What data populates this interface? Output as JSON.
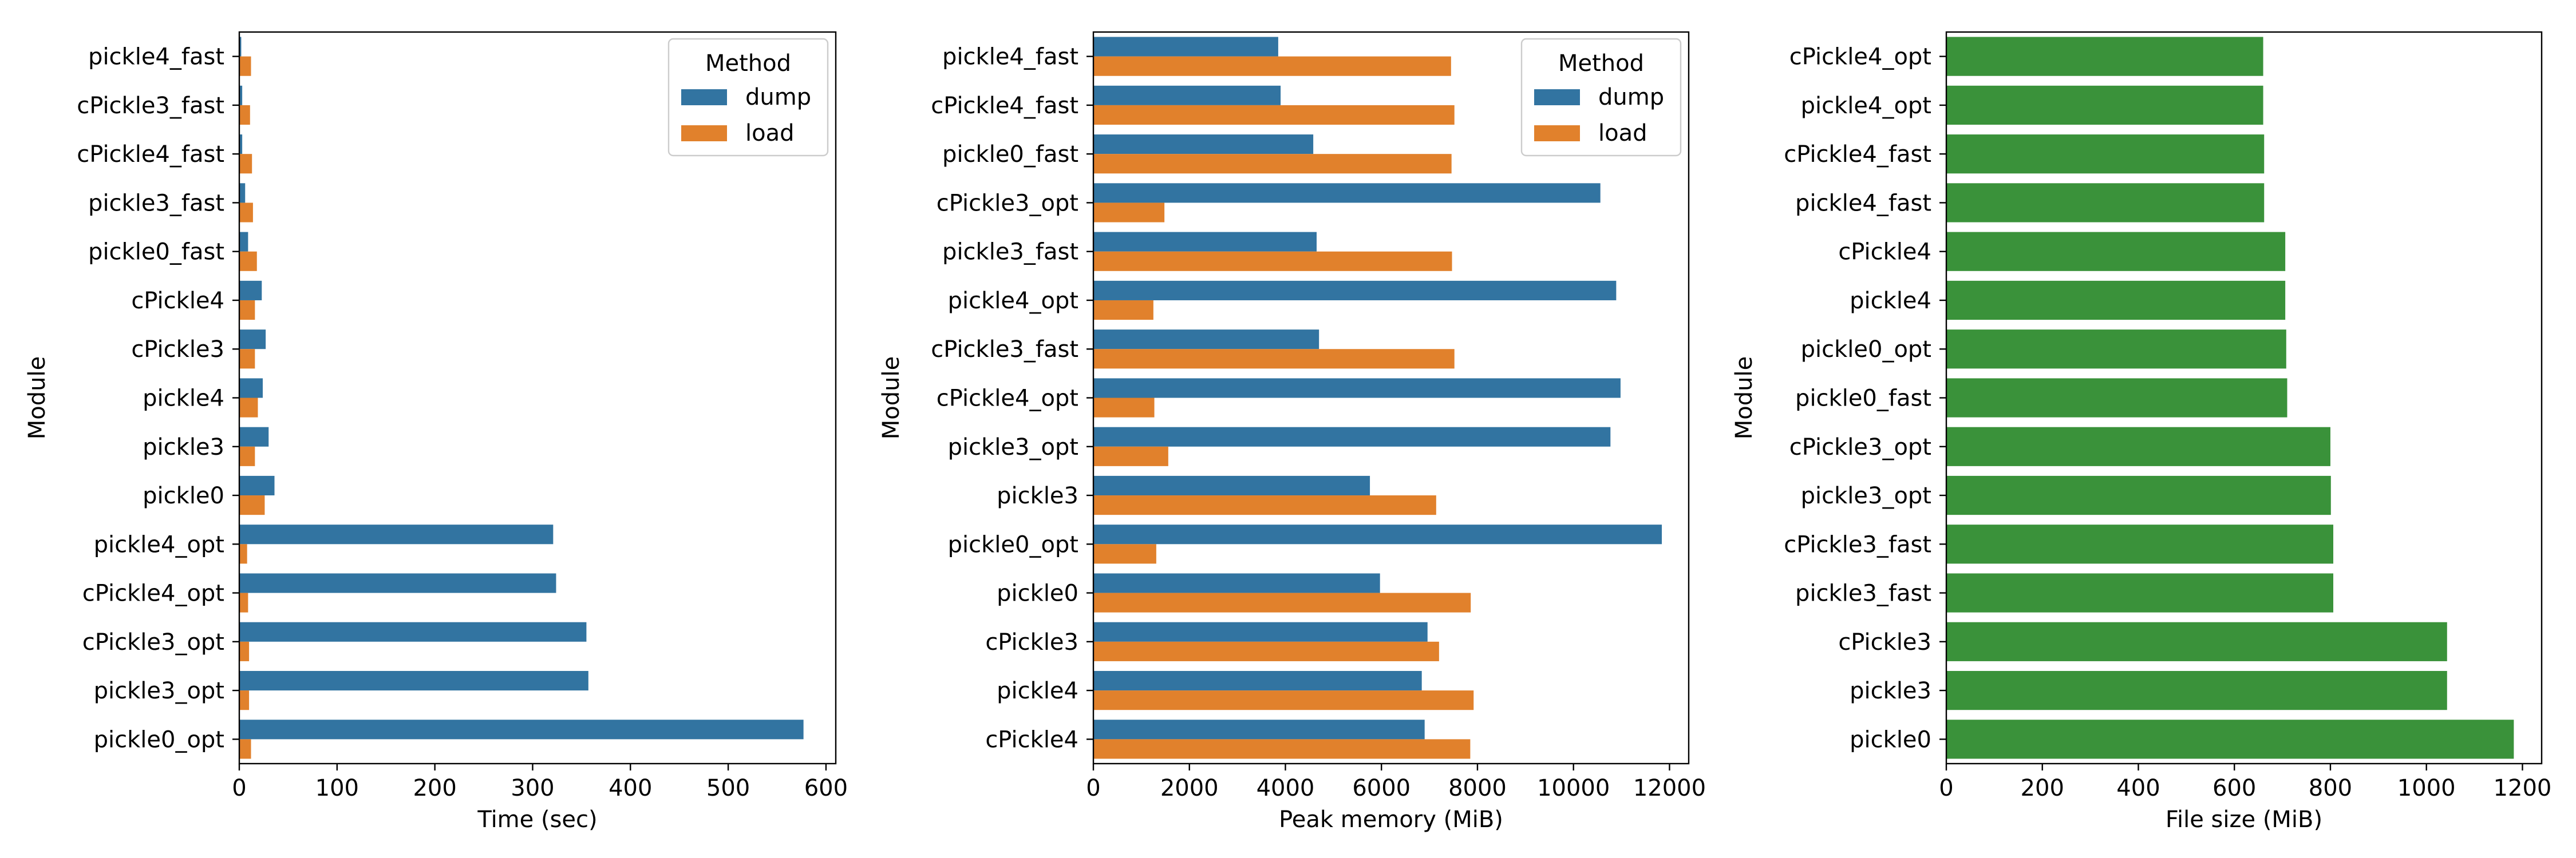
{
  "colors": {
    "dump": "#3274a1",
    "load": "#e1812c",
    "size": "#3a923a",
    "axis": "#000000"
  },
  "chart_data": [
    {
      "type": "bar",
      "orientation": "horizontal",
      "xlabel": "Time (sec)",
      "ylabel": "Module",
      "xlim": [
        0,
        610
      ],
      "xticks": [
        0,
        100,
        200,
        300,
        400,
        500,
        600
      ],
      "legend": {
        "title": "Method",
        "placement": "top-right"
      },
      "categories": [
        "pickle4_fast",
        "cPickle3_fast",
        "cPickle4_fast",
        "pickle3_fast",
        "pickle0_fast",
        "cPickle4",
        "cPickle3",
        "pickle4",
        "pickle3",
        "pickle0",
        "pickle4_opt",
        "cPickle4_opt",
        "cPickle3_opt",
        "pickle3_opt",
        "pickle0_opt"
      ],
      "series": [
        {
          "name": "dump",
          "values": [
            2,
            3,
            3,
            6,
            9,
            23,
            27,
            24,
            30,
            36,
            321,
            324,
            355,
            357,
            577
          ]
        },
        {
          "name": "load",
          "values": [
            12,
            11,
            13,
            14,
            18,
            16,
            16,
            19,
            16,
            26,
            8,
            9,
            10,
            10,
            12
          ]
        }
      ]
    },
    {
      "type": "bar",
      "orientation": "horizontal",
      "xlabel": "Peak memory (MiB)",
      "ylabel": "Module",
      "xlim": [
        0,
        12400
      ],
      "xticks": [
        0,
        2000,
        4000,
        6000,
        8000,
        10000,
        12000
      ],
      "legend": {
        "title": "Method",
        "placement": "top-right"
      },
      "categories": [
        "pickle4_fast",
        "cPickle4_fast",
        "pickle0_fast",
        "cPickle3_opt",
        "pickle3_fast",
        "pickle4_opt",
        "cPickle3_fast",
        "cPickle4_opt",
        "pickle3_opt",
        "pickle3",
        "pickle0_opt",
        "pickle0",
        "cPickle3",
        "pickle4",
        "cPickle4"
      ],
      "series": [
        {
          "name": "dump",
          "values": [
            3850,
            3900,
            4580,
            10560,
            4650,
            10890,
            4700,
            10980,
            10770,
            5760,
            11840,
            5970,
            6960,
            6840,
            6900
          ]
        },
        {
          "name": "load",
          "values": [
            7450,
            7520,
            7460,
            1480,
            7470,
            1250,
            7520,
            1270,
            1560,
            7140,
            1310,
            7860,
            7200,
            7920,
            7850
          ]
        }
      ]
    },
    {
      "type": "bar",
      "orientation": "horizontal",
      "xlabel": "File size (MiB)",
      "ylabel": "Module",
      "xlim": [
        0,
        1240
      ],
      "xticks": [
        0,
        200,
        400,
        600,
        800,
        1000,
        1200
      ],
      "categories": [
        "cPickle4_opt",
        "pickle4_opt",
        "cPickle4_fast",
        "pickle4_fast",
        "cPickle4",
        "pickle4",
        "pickle0_opt",
        "pickle0_fast",
        "cPickle3_opt",
        "pickle3_opt",
        "cPickle3_fast",
        "pickle3_fast",
        "cPickle3",
        "pickle3",
        "pickle0"
      ],
      "series": [
        {
          "name": "size",
          "values": [
            660,
            660,
            662,
            662,
            706,
            706,
            708,
            710,
            800,
            801,
            806,
            806,
            1043,
            1043,
            1182
          ]
        }
      ]
    }
  ]
}
